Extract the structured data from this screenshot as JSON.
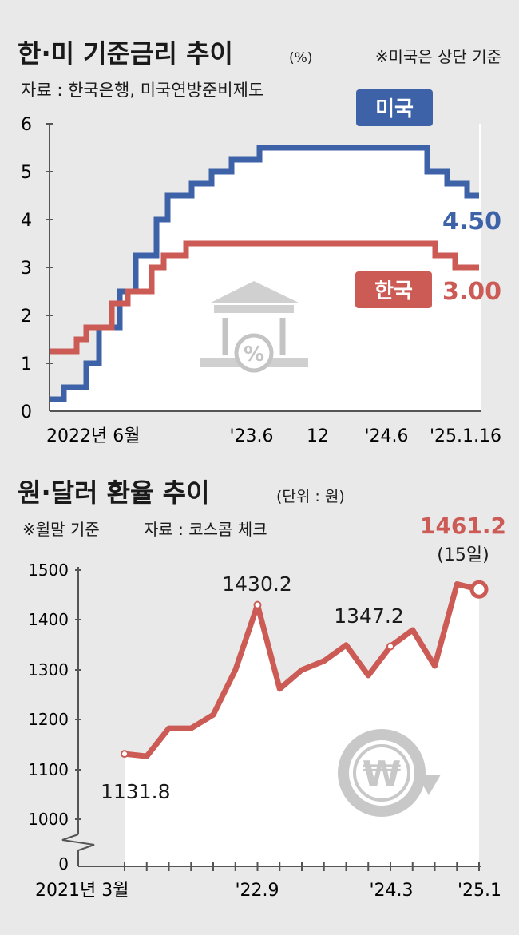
{
  "chart_data": [
    {
      "type": "line",
      "title": "한·미 기준금리 추이",
      "unit": "(%)",
      "note": "※미국은 상단 기준",
      "source": "자료 : 한국은행, 미국연방준비제도",
      "ylim": [
        0,
        6
      ],
      "yticks": [
        "6",
        "5",
        "4",
        "3",
        "2",
        "1",
        "0"
      ],
      "xticks": [
        "2022년 6월",
        "'23.6",
        "12",
        "'24.6",
        "'25.1.16"
      ],
      "series": [
        {
          "name": "미국",
          "color": "#3d62a8",
          "last_label": "4.50",
          "steps": [
            0.25,
            0.5,
            1.0,
            1.75,
            2.5,
            3.25,
            4.0,
            4.5,
            4.75,
            5.0,
            5.25,
            5.5,
            5.0,
            4.75,
            4.5
          ]
        },
        {
          "name": "한국",
          "color": "#cc5a55",
          "last_label": "3.00",
          "steps": [
            1.25,
            1.5,
            1.75,
            2.25,
            2.5,
            3.0,
            3.25,
            3.5,
            3.25,
            3.0
          ]
        }
      ]
    },
    {
      "type": "line",
      "title": "원·달러 환율 추이",
      "unit": "(단위 : 원)",
      "note": "※월말 기준",
      "source": "자료 : 코스콤 체크",
      "yticks": [
        "1500",
        "1400",
        "1300",
        "1200",
        "1100",
        "1000",
        "0"
      ],
      "xticks": [
        "2021년 3월",
        "'22.9",
        "'24.3",
        "'25.1"
      ],
      "series": [
        {
          "name": "원·달러 환율",
          "color": "#cc5a55",
          "values": [
            1131.8,
            1127,
            1183,
            1183,
            1210,
            1300,
            1430.2,
            1262,
            1300,
            1318,
            1350,
            1289,
            1347.2,
            1380,
            1308,
            1472,
            1461.2
          ]
        }
      ],
      "annotations": [
        {
          "label": "1131.8"
        },
        {
          "label": "1430.2"
        },
        {
          "label": "1347.2"
        },
        {
          "label": "1461.2",
          "sublabel": "(15일)"
        }
      ]
    }
  ]
}
